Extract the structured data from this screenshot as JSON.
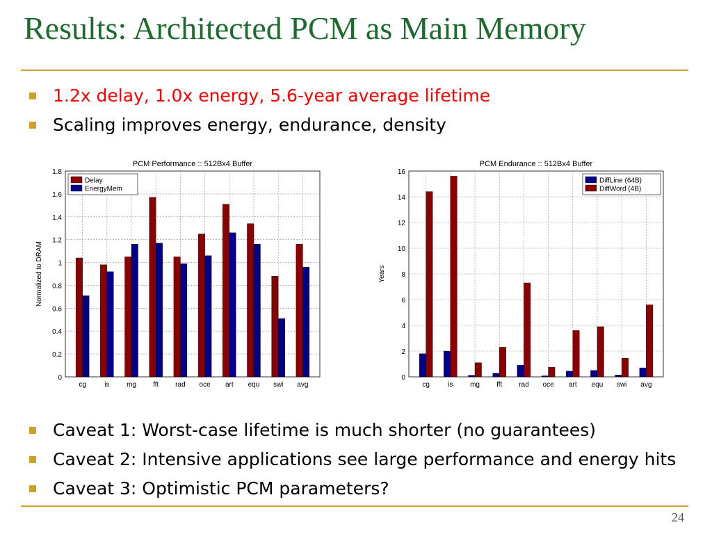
{
  "slide": {
    "title": "Results: Architected PCM as Main Memory",
    "page_number": "24",
    "top_bullets": [
      {
        "text": "1.2x delay, 1.0x energy, 5.6-year average lifetime",
        "color": "#ff0000"
      },
      {
        "text": "Scaling improves energy, endurance, density",
        "color": "#000000"
      }
    ],
    "bottom_bullets": [
      {
        "text": "Caveat 1: Worst-case lifetime is much shorter (no guarantees)"
      },
      {
        "text": "Caveat 2: Intensive applications see large performance and energy hits"
      },
      {
        "text": "Caveat 3: Optimistic PCM parameters?"
      }
    ],
    "colors": {
      "title": "#1e6b2f",
      "rule": "#c9a227",
      "bullet": "#c9a227",
      "dark_red": "#8b0000",
      "dark_blue": "#00008b"
    }
  },
  "chart_data": [
    {
      "type": "bar",
      "title": "PCM Performance :: 512Bx4 Buffer",
      "xlabel": "",
      "ylabel": "Normalized to DRAM",
      "ylim": [
        0,
        1.8
      ],
      "yticks": [
        "0",
        "0.2",
        "0.4",
        "0.6",
        "0.8",
        "1",
        "1.2",
        "1.4",
        "1.6",
        "1.8"
      ],
      "ytick_values": [
        0,
        0.2,
        0.4,
        0.6,
        0.8,
        1.0,
        1.2,
        1.4,
        1.6,
        1.8
      ],
      "grid": true,
      "legend_position": "top-left",
      "categories": [
        "cg",
        "is",
        "mg",
        "fft",
        "rad",
        "oce",
        "art",
        "equ",
        "swi",
        "avg"
      ],
      "series": [
        {
          "name": "Delay",
          "color": "#8b0000",
          "values": [
            1.04,
            0.98,
            1.05,
            1.57,
            1.05,
            1.25,
            1.51,
            1.34,
            0.88,
            1.16
          ]
        },
        {
          "name": "EnergyMem",
          "color": "#00008b",
          "values": [
            0.71,
            0.92,
            1.16,
            1.17,
            0.99,
            1.06,
            1.26,
            1.16,
            0.51,
            0.96
          ]
        }
      ]
    },
    {
      "type": "bar",
      "title": "PCM Endurance :: 512Bx4 Buffer",
      "xlabel": "",
      "ylabel": "Years",
      "ylim": [
        0,
        16
      ],
      "yticks": [
        "0",
        "2",
        "4",
        "6",
        "8",
        "10",
        "12",
        "14",
        "16"
      ],
      "ytick_values": [
        0,
        2,
        4,
        6,
        8,
        10,
        12,
        14,
        16
      ],
      "grid": true,
      "legend_position": "top-right",
      "categories": [
        "cg",
        "is",
        "mg",
        "fft",
        "rad",
        "oce",
        "art",
        "equ",
        "swi",
        "avg"
      ],
      "series": [
        {
          "name": "DiffLine (64B)",
          "color": "#00008b",
          "values": [
            1.8,
            2.0,
            0.12,
            0.28,
            0.9,
            0.08,
            0.45,
            0.5,
            0.15,
            0.7
          ]
        },
        {
          "name": "DiffWord (4B)",
          "color": "#8b0000",
          "values": [
            14.4,
            15.6,
            1.1,
            2.3,
            7.3,
            0.75,
            3.6,
            3.9,
            1.45,
            5.6
          ]
        }
      ]
    }
  ]
}
